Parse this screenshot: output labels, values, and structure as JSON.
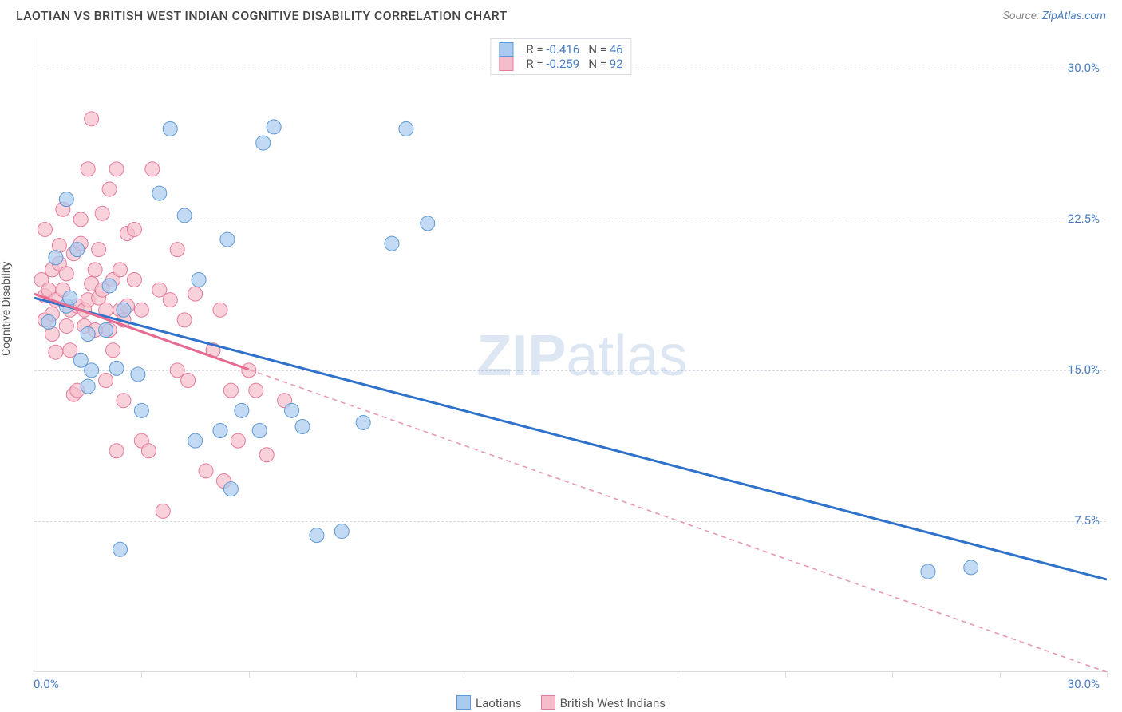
{
  "title": "LAOTIAN VS BRITISH WEST INDIAN COGNITIVE DISABILITY CORRELATION CHART",
  "source_label": "Source:",
  "source_value": "ZipAtlas.com",
  "y_axis_label": "Cognitive Disability",
  "watermark_bold": "ZIP",
  "watermark_light": "atlas",
  "chart": {
    "type": "scatter",
    "xlim": [
      0.0,
      30.0
    ],
    "ylim": [
      0.0,
      31.5
    ],
    "x_origin_label": "0.0%",
    "x_max_label": "30.0%",
    "y_ticks": [
      7.5,
      15.0,
      22.5,
      30.0
    ],
    "y_tick_labels": [
      "7.5%",
      "15.0%",
      "22.5%",
      "30.0%"
    ],
    "x_minor_ticks": [
      3,
      6,
      9,
      12,
      15,
      18,
      21,
      24,
      27,
      30
    ],
    "background_color": "#ffffff",
    "grid_color": "#d9dde3",
    "series": [
      {
        "name": "Laotians",
        "color_fill": "#a9cbef",
        "color_stroke": "#5f98d4",
        "marker_radius": 9,
        "marker_opacity": 0.7,
        "trend": {
          "x1": 0.0,
          "y1": 18.6,
          "x2": 30.0,
          "y2": 4.6,
          "color": "#2f72c9",
          "width": 3,
          "dash": "none"
        },
        "R": "-0.416",
        "N": "46",
        "points": [
          [
            0.4,
            17.4
          ],
          [
            0.6,
            20.6
          ],
          [
            0.9,
            23.5
          ],
          [
            0.9,
            18.2
          ],
          [
            1.0,
            18.6
          ],
          [
            1.2,
            21.0
          ],
          [
            1.3,
            15.5
          ],
          [
            1.5,
            14.2
          ],
          [
            1.5,
            16.8
          ],
          [
            1.6,
            15.0
          ],
          [
            2.0,
            17.0
          ],
          [
            2.1,
            19.2
          ],
          [
            2.3,
            15.1
          ],
          [
            2.4,
            6.1
          ],
          [
            2.5,
            18.0
          ],
          [
            2.9,
            14.8
          ],
          [
            3.0,
            13.0
          ],
          [
            3.5,
            23.8
          ],
          [
            3.8,
            27.0
          ],
          [
            4.2,
            22.7
          ],
          [
            4.5,
            11.5
          ],
          [
            4.6,
            19.5
          ],
          [
            5.2,
            12.0
          ],
          [
            5.4,
            21.5
          ],
          [
            5.5,
            9.1
          ],
          [
            5.8,
            13.0
          ],
          [
            6.3,
            12.0
          ],
          [
            6.4,
            26.3
          ],
          [
            6.7,
            27.1
          ],
          [
            7.2,
            13.0
          ],
          [
            7.5,
            12.2
          ],
          [
            7.9,
            6.8
          ],
          [
            8.6,
            7.0
          ],
          [
            9.2,
            12.4
          ],
          [
            10.0,
            21.3
          ],
          [
            10.4,
            27.0
          ],
          [
            11.0,
            22.3
          ],
          [
            25.0,
            5.0
          ],
          [
            26.2,
            5.2
          ]
        ]
      },
      {
        "name": "British West Indians",
        "color_fill": "#f5bdcb",
        "color_stroke": "#e57a9a",
        "marker_radius": 9,
        "marker_opacity": 0.7,
        "trend": {
          "x1": 0.0,
          "y1": 18.8,
          "x2": 30.0,
          "y2": 0.0,
          "color": "#e99ab1",
          "width": 1.6,
          "dash": "6,5"
        },
        "R": "-0.259",
        "N": "92",
        "points": [
          [
            0.2,
            19.5
          ],
          [
            0.3,
            17.5
          ],
          [
            0.3,
            22.0
          ],
          [
            0.3,
            18.7
          ],
          [
            0.4,
            19.0
          ],
          [
            0.5,
            20.0
          ],
          [
            0.5,
            16.8
          ],
          [
            0.5,
            17.8
          ],
          [
            0.6,
            18.5
          ],
          [
            0.6,
            15.9
          ],
          [
            0.7,
            20.3
          ],
          [
            0.7,
            21.2
          ],
          [
            0.8,
            19.0
          ],
          [
            0.8,
            23.0
          ],
          [
            0.9,
            17.2
          ],
          [
            0.9,
            19.8
          ],
          [
            1.0,
            18.0
          ],
          [
            1.0,
            16.0
          ],
          [
            1.1,
            20.8
          ],
          [
            1.1,
            13.8
          ],
          [
            1.2,
            18.2
          ],
          [
            1.2,
            14.0
          ],
          [
            1.3,
            22.5
          ],
          [
            1.3,
            21.3
          ],
          [
            1.4,
            18.0
          ],
          [
            1.4,
            17.2
          ],
          [
            1.5,
            18.5
          ],
          [
            1.5,
            25.0
          ],
          [
            1.6,
            19.3
          ],
          [
            1.6,
            27.5
          ],
          [
            1.7,
            20.0
          ],
          [
            1.7,
            17.0
          ],
          [
            1.8,
            18.6
          ],
          [
            1.8,
            21.0
          ],
          [
            1.9,
            19.0
          ],
          [
            1.9,
            22.8
          ],
          [
            2.0,
            18.0
          ],
          [
            2.0,
            14.5
          ],
          [
            2.1,
            17.0
          ],
          [
            2.1,
            24.0
          ],
          [
            2.2,
            19.5
          ],
          [
            2.2,
            16.0
          ],
          [
            2.3,
            11.0
          ],
          [
            2.3,
            25.0
          ],
          [
            2.4,
            18.0
          ],
          [
            2.4,
            20.0
          ],
          [
            2.5,
            17.5
          ],
          [
            2.5,
            13.5
          ],
          [
            2.6,
            21.8
          ],
          [
            2.6,
            18.2
          ],
          [
            2.8,
            19.5
          ],
          [
            2.8,
            22.0
          ],
          [
            3.0,
            18.0
          ],
          [
            3.0,
            11.5
          ],
          [
            3.2,
            11.0
          ],
          [
            3.3,
            25.0
          ],
          [
            3.5,
            19.0
          ],
          [
            3.6,
            8.0
          ],
          [
            3.8,
            18.5
          ],
          [
            4.0,
            21.0
          ],
          [
            4.0,
            15.0
          ],
          [
            4.2,
            17.5
          ],
          [
            4.3,
            14.5
          ],
          [
            4.5,
            18.8
          ],
          [
            4.8,
            10.0
          ],
          [
            5.0,
            16.0
          ],
          [
            5.2,
            18.0
          ],
          [
            5.3,
            9.5
          ],
          [
            5.5,
            14.0
          ],
          [
            5.7,
            11.5
          ],
          [
            6.0,
            15.0
          ],
          [
            6.2,
            14.0
          ],
          [
            6.5,
            10.8
          ],
          [
            7.0,
            13.5
          ]
        ]
      }
    ],
    "bottom_legend": [
      {
        "swatch_fill": "#a9cbef",
        "swatch_stroke": "#5f98d4",
        "label": "Laotians"
      },
      {
        "swatch_fill": "#f5bdcb",
        "swatch_stroke": "#e57a9a",
        "label": "British West Indians"
      }
    ],
    "stat_labels": {
      "R": "R =",
      "N": "N ="
    }
  }
}
